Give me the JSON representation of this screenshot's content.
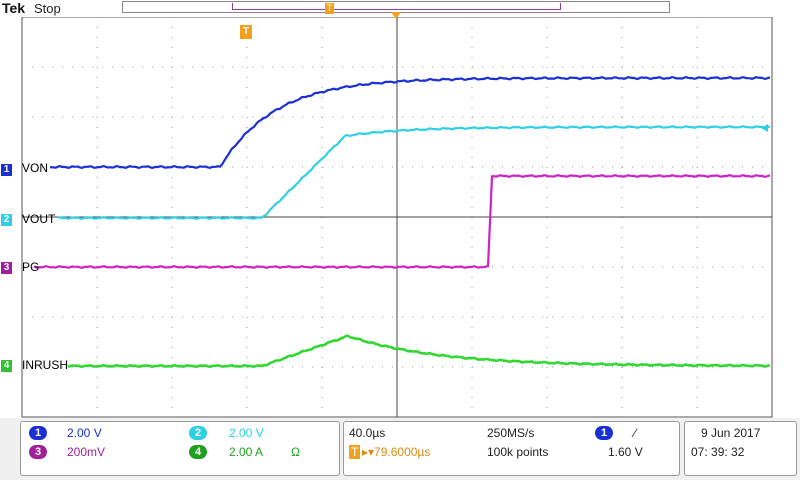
{
  "header": {
    "brand": "Tek",
    "run_state": "Stop",
    "view_marker": "T",
    "trigger_marker": "T"
  },
  "channels": [
    {
      "num": "1",
      "label": "VON",
      "color": "#1a2fd6"
    },
    {
      "num": "2",
      "label": "VOUT",
      "color": "#2fd0e6"
    },
    {
      "num": "3",
      "label": "PG",
      "color": "#d020c8"
    },
    {
      "num": "4",
      "label": "INRUSH",
      "color": "#30d830"
    }
  ],
  "status": {
    "ch1": {
      "num": "1",
      "scale": "2.00 V",
      "color": "#1a2fd6"
    },
    "ch2": {
      "num": "2",
      "scale": "2.00 V",
      "color": "#2fd0e6"
    },
    "ch3": {
      "num": "3",
      "scale": "200mV",
      "color": "#a0209a"
    },
    "ch4": {
      "num": "4",
      "scale": "2.00 A",
      "extra": "Ω",
      "color": "#20a020"
    },
    "timebase": "40.0µs",
    "sample_rate": "250MS/s",
    "trigger_offset_icon": "T",
    "trigger_offset": "▸▾79.6000µs",
    "record_length": "100k points",
    "trigger_source": "1",
    "trigger_slope": "∕",
    "trigger_level": "1.60 V",
    "date": "9  Jun   2017",
    "time": "07: 39: 32"
  }
}
